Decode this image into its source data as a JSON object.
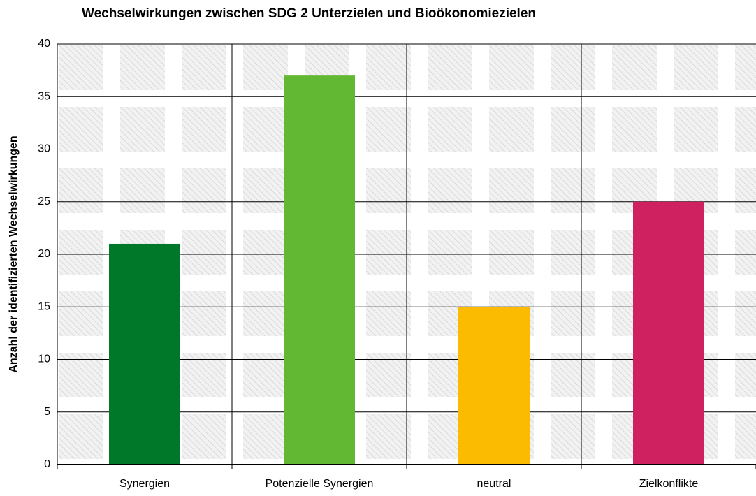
{
  "chart_data": {
    "type": "bar",
    "title": "Wechselwirkungen zwischen SDG 2 Unterzielen und Bioökonomiezielen",
    "ylabel": "Anzahl der identifizierten Wechselwirkungen",
    "categories": [
      "Synergien",
      "Potenzielle Synergien",
      "neutral",
      "Zielkonflikte"
    ],
    "values": [
      21,
      37,
      15,
      25
    ],
    "colors": [
      "#00782a",
      "#62b833",
      "#fbbb00",
      "#cf2160"
    ],
    "ylim": [
      0,
      40
    ],
    "yticks": [
      0,
      5,
      10,
      15,
      20,
      25,
      30,
      35,
      40
    ],
    "grid": true
  }
}
